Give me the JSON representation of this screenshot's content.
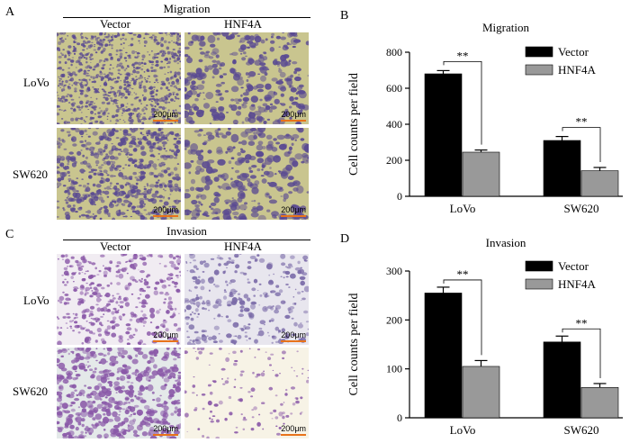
{
  "panel_letters": [
    "A",
    "B",
    "C",
    "D"
  ],
  "migration_images": {
    "title": "Migration",
    "columns": [
      "Vector",
      "HNF4A"
    ],
    "rows": [
      "LoVo",
      "SW620"
    ],
    "scale_bar": "200μm"
  },
  "invasion_images": {
    "title": "Invasion",
    "columns": [
      "Vector",
      "HNF4A"
    ],
    "rows": [
      "LoVo",
      "SW620"
    ],
    "scale_bar": "200μm"
  },
  "colors": {
    "vector": "#000000",
    "hnf4a": "#999999",
    "migration_bg": "#c9c58f",
    "migration_cell": "#5a4a92",
    "invasion_bg": "#f1ecf2",
    "invasion_cell": "#8a58a8"
  },
  "chart_data": [
    {
      "type": "bar",
      "title": "Migration",
      "ylabel": "Cell counts per field",
      "xlabel": "",
      "categories": [
        "LoVo",
        "SW620"
      ],
      "ylim": [
        0,
        800
      ],
      "yticks": [
        0,
        200,
        400,
        600,
        800
      ],
      "legend_position": "top-right",
      "series": [
        {
          "name": "Vector",
          "values": [
            680,
            310
          ],
          "errors": [
            18,
            22
          ]
        },
        {
          "name": "HNF4A",
          "values": [
            245,
            142
          ],
          "errors": [
            12,
            18
          ]
        }
      ],
      "significance": [
        "**",
        "**"
      ]
    },
    {
      "type": "bar",
      "title": "Invasion",
      "ylabel": "Cell counts per field",
      "xlabel": "",
      "categories": [
        "LoVo",
        "SW620"
      ],
      "ylim": [
        0,
        300
      ],
      "yticks": [
        0,
        100,
        200,
        300
      ],
      "legend_position": "top-right",
      "series": [
        {
          "name": "Vector",
          "values": [
            255,
            155
          ],
          "errors": [
            12,
            12
          ]
        },
        {
          "name": "HNF4A",
          "values": [
            105,
            62
          ],
          "errors": [
            12,
            8
          ]
        }
      ],
      "significance": [
        "**",
        "**"
      ]
    }
  ]
}
